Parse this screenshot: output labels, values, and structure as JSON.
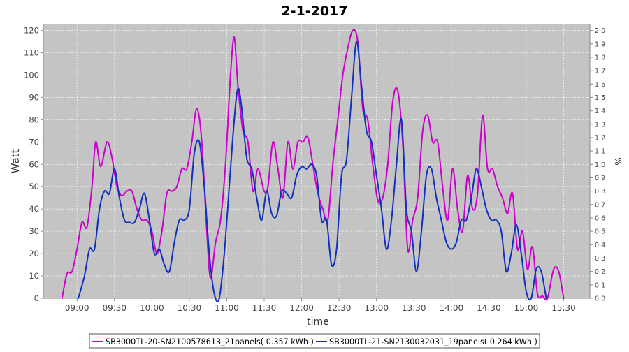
{
  "chart_data": {
    "type": "line",
    "title": "2-1-2017",
    "xlabel": "time",
    "ylabel": "Watt",
    "y2label": "%",
    "ylim": [
      0,
      123
    ],
    "y2lim": [
      0,
      2.05
    ],
    "yticks": [
      0,
      10,
      20,
      30,
      40,
      50,
      60,
      70,
      80,
      90,
      100,
      110,
      120
    ],
    "y2ticks": [
      "0.0",
      "0.1",
      "0.2",
      "0.3",
      "0.4",
      "0.5",
      "0.6",
      "0.7",
      "0.8",
      "0.9",
      "1.0",
      "1.1",
      "1.2",
      "1.3",
      "1.4",
      "1.5",
      "1.6",
      "1.7",
      "1.8",
      "1.9",
      "2.0"
    ],
    "xticks": [
      "09:00",
      "09:30",
      "10:00",
      "10:30",
      "11:00",
      "11:30",
      "12:00",
      "12:30",
      "13:00",
      "13:30",
      "14:00",
      "14:30",
      "15:00",
      "15:30"
    ],
    "grid": true,
    "legend_position": "bottom",
    "series": [
      {
        "name": "SB3000TL-20-SN2100578613_21panels( 0.357 kWh )",
        "color": "#cc00cc",
        "points": [
          [
            "08:48",
            0
          ],
          [
            "08:52",
            11
          ],
          [
            "08:56",
            12
          ],
          [
            "09:00",
            22
          ],
          [
            "09:04",
            34
          ],
          [
            "09:08",
            32
          ],
          [
            "09:12",
            50
          ],
          [
            "09:15",
            70
          ],
          [
            "09:19",
            59
          ],
          [
            "09:24",
            70
          ],
          [
            "09:28",
            63
          ],
          [
            "09:32",
            50
          ],
          [
            "09:36",
            46
          ],
          [
            "09:40",
            48
          ],
          [
            "09:44",
            48
          ],
          [
            "09:48",
            40
          ],
          [
            "09:52",
            35
          ],
          [
            "09:56",
            35
          ],
          [
            "10:00",
            30
          ],
          [
            "10:04",
            20
          ],
          [
            "10:08",
            30
          ],
          [
            "10:12",
            47
          ],
          [
            "10:16",
            48
          ],
          [
            "10:20",
            50
          ],
          [
            "10:24",
            58
          ],
          [
            "10:28",
            58
          ],
          [
            "10:32",
            70
          ],
          [
            "10:36",
            85
          ],
          [
            "10:40",
            70
          ],
          [
            "10:44",
            30
          ],
          [
            "10:47",
            9
          ],
          [
            "10:51",
            25
          ],
          [
            "10:55",
            35
          ],
          [
            "10:59",
            60
          ],
          [
            "11:03",
            100
          ],
          [
            "11:06",
            117
          ],
          [
            "11:09",
            95
          ],
          [
            "11:13",
            75
          ],
          [
            "11:17",
            70
          ],
          [
            "11:21",
            48
          ],
          [
            "11:25",
            58
          ],
          [
            "11:30",
            48
          ],
          [
            "11:33",
            50
          ],
          [
            "11:37",
            70
          ],
          [
            "11:41",
            58
          ],
          [
            "11:45",
            45
          ],
          [
            "11:49",
            70
          ],
          [
            "11:53",
            58
          ],
          [
            "11:57",
            70
          ],
          [
            "12:01",
            70
          ],
          [
            "12:05",
            72
          ],
          [
            "12:09",
            60
          ],
          [
            "12:13",
            47
          ],
          [
            "12:17",
            40
          ],
          [
            "12:21",
            35
          ],
          [
            "12:25",
            60
          ],
          [
            "12:29",
            80
          ],
          [
            "12:33",
            100
          ],
          [
            "12:37",
            112
          ],
          [
            "12:41",
            120
          ],
          [
            "12:45",
            115
          ],
          [
            "12:49",
            85
          ],
          [
            "12:53",
            80
          ],
          [
            "12:57",
            60
          ],
          [
            "13:01",
            44
          ],
          [
            "13:05",
            45
          ],
          [
            "13:09",
            60
          ],
          [
            "13:13",
            88
          ],
          [
            "13:17",
            93
          ],
          [
            "13:21",
            70
          ],
          [
            "13:25",
            22
          ],
          [
            "13:29",
            35
          ],
          [
            "13:33",
            45
          ],
          [
            "13:37",
            75
          ],
          [
            "13:41",
            82
          ],
          [
            "13:45",
            70
          ],
          [
            "13:49",
            70
          ],
          [
            "13:53",
            50
          ],
          [
            "13:57",
            35
          ],
          [
            "14:01",
            58
          ],
          [
            "14:05",
            40
          ],
          [
            "14:09",
            30
          ],
          [
            "14:13",
            55
          ],
          [
            "14:17",
            40
          ],
          [
            "14:21",
            47
          ],
          [
            "14:25",
            82
          ],
          [
            "14:29",
            58
          ],
          [
            "14:33",
            58
          ],
          [
            "14:37",
            50
          ],
          [
            "14:41",
            45
          ],
          [
            "14:45",
            38
          ],
          [
            "14:49",
            47
          ],
          [
            "14:53",
            22
          ],
          [
            "14:57",
            30
          ],
          [
            "15:01",
            13
          ],
          [
            "15:05",
            23
          ],
          [
            "15:09",
            2
          ],
          [
            "15:13",
            1
          ],
          [
            "15:17",
            0
          ],
          [
            "15:22",
            13
          ],
          [
            "15:26",
            12
          ],
          [
            "15:30",
            0
          ]
        ]
      },
      {
        "name": "SB3000TL-21-SN2130032031_19panels( 0.264 kWh )",
        "color": "#1030c0",
        "points": [
          [
            "09:01",
            0
          ],
          [
            "09:06",
            10
          ],
          [
            "09:10",
            22
          ],
          [
            "09:14",
            22
          ],
          [
            "09:18",
            40
          ],
          [
            "09:22",
            48
          ],
          [
            "09:26",
            47
          ],
          [
            "09:30",
            58
          ],
          [
            "09:34",
            45
          ],
          [
            "09:38",
            35
          ],
          [
            "09:42",
            34
          ],
          [
            "09:46",
            34
          ],
          [
            "09:50",
            40
          ],
          [
            "09:54",
            47
          ],
          [
            "09:58",
            35
          ],
          [
            "10:02",
            20
          ],
          [
            "10:06",
            22
          ],
          [
            "10:10",
            15
          ],
          [
            "10:14",
            12
          ],
          [
            "10:18",
            25
          ],
          [
            "10:22",
            35
          ],
          [
            "10:26",
            35
          ],
          [
            "10:30",
            40
          ],
          [
            "10:34",
            65
          ],
          [
            "10:38",
            70
          ],
          [
            "10:42",
            50
          ],
          [
            "10:46",
            20
          ],
          [
            "10:50",
            2
          ],
          [
            "10:54",
            0
          ],
          [
            "10:58",
            20
          ],
          [
            "11:02",
            50
          ],
          [
            "11:06",
            80
          ],
          [
            "11:09",
            94
          ],
          [
            "11:12",
            85
          ],
          [
            "11:16",
            63
          ],
          [
            "11:20",
            58
          ],
          [
            "11:24",
            45
          ],
          [
            "11:28",
            35
          ],
          [
            "11:32",
            48
          ],
          [
            "11:36",
            38
          ],
          [
            "11:40",
            37
          ],
          [
            "11:44",
            48
          ],
          [
            "11:48",
            47
          ],
          [
            "11:52",
            45
          ],
          [
            "11:56",
            55
          ],
          [
            "12:00",
            59
          ],
          [
            "12:04",
            58
          ],
          [
            "12:08",
            60
          ],
          [
            "12:12",
            55
          ],
          [
            "12:16",
            35
          ],
          [
            "12:20",
            35
          ],
          [
            "12:24",
            15
          ],
          [
            "12:28",
            22
          ],
          [
            "12:32",
            55
          ],
          [
            "12:36",
            62
          ],
          [
            "12:40",
            90
          ],
          [
            "12:44",
            115
          ],
          [
            "12:48",
            95
          ],
          [
            "12:52",
            75
          ],
          [
            "12:56",
            70
          ],
          [
            "13:00",
            55
          ],
          [
            "13:04",
            40
          ],
          [
            "13:08",
            22
          ],
          [
            "13:12",
            35
          ],
          [
            "13:16",
            60
          ],
          [
            "13:20",
            80
          ],
          [
            "13:24",
            40
          ],
          [
            "13:28",
            30
          ],
          [
            "13:32",
            12
          ],
          [
            "13:36",
            30
          ],
          [
            "13:40",
            55
          ],
          [
            "13:44",
            58
          ],
          [
            "13:48",
            45
          ],
          [
            "13:52",
            35
          ],
          [
            "13:56",
            25
          ],
          [
            "14:00",
            22
          ],
          [
            "14:04",
            25
          ],
          [
            "14:08",
            35
          ],
          [
            "14:12",
            35
          ],
          [
            "14:16",
            45
          ],
          [
            "14:20",
            58
          ],
          [
            "14:24",
            50
          ],
          [
            "14:28",
            40
          ],
          [
            "14:32",
            35
          ],
          [
            "14:36",
            35
          ],
          [
            "14:40",
            30
          ],
          [
            "14:44",
            12
          ],
          [
            "14:48",
            20
          ],
          [
            "14:52",
            33
          ],
          [
            "14:56",
            20
          ],
          [
            "15:00",
            3
          ],
          [
            "15:04",
            0
          ],
          [
            "15:08",
            13
          ],
          [
            "15:12",
            12
          ],
          [
            "15:16",
            0
          ]
        ]
      }
    ]
  }
}
